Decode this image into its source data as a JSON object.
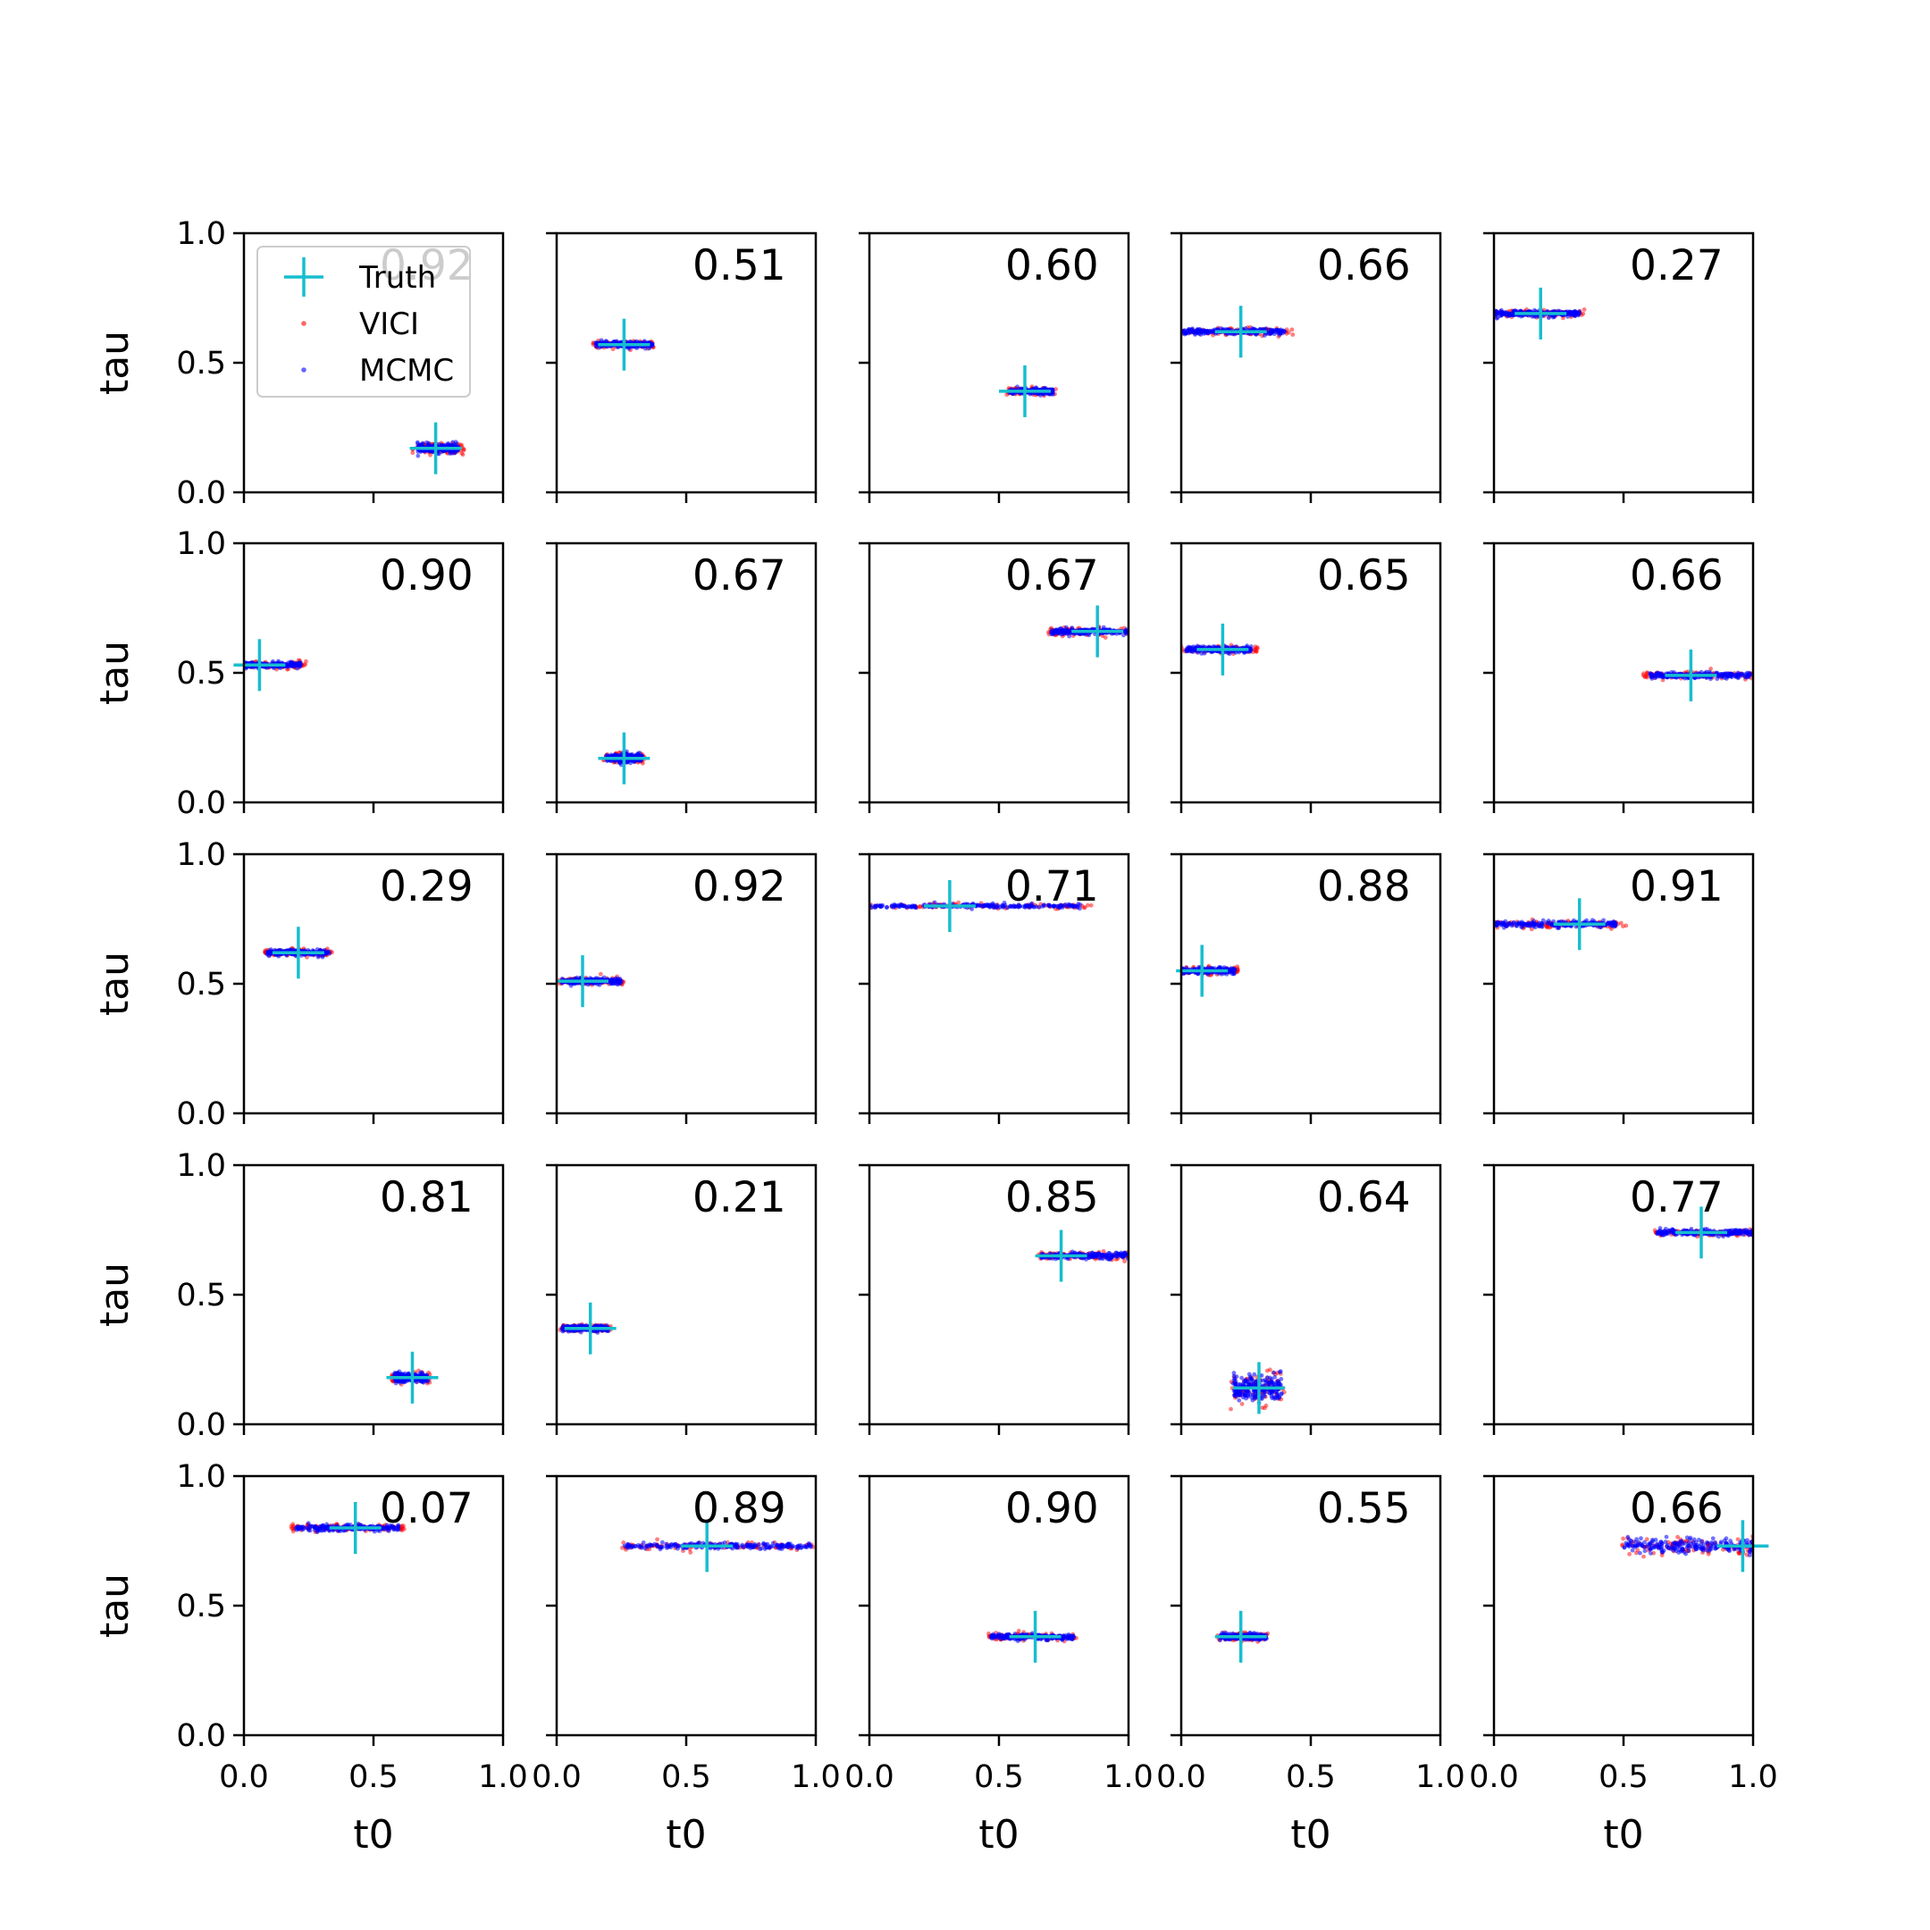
{
  "colors": {
    "truth": "#17becf",
    "vici": "#ff0000",
    "mcmc": "#0000ff",
    "axes": "#000000",
    "background": "#ffffff"
  },
  "legend": {
    "placement": "upper-left of first panel",
    "entries": [
      {
        "label": "Truth",
        "marker": "plus",
        "color": "#17becf"
      },
      {
        "label": "VICI",
        "marker": "dot",
        "color": "#ff0000"
      },
      {
        "label": "MCMC",
        "marker": "dot",
        "color": "#0000ff"
      }
    ]
  },
  "chart_data": {
    "type": "scatter",
    "layout": {
      "rows": 5,
      "cols": 5
    },
    "xlabel": "t0",
    "ylabel": "tau",
    "xlim": [
      0,
      1
    ],
    "ylim": [
      0,
      1
    ],
    "xticks": [
      "0.0",
      "0.5",
      "1.0"
    ],
    "yticks": [
      "0.0",
      "0.5",
      "1.0"
    ],
    "grid": false,
    "panels": [
      {
        "score": "0.92",
        "truth": [
          0.74,
          0.17
        ],
        "t0_range": [
          0.67,
          0.83
        ],
        "tau_spread": 0.012,
        "vici_extra": 0.02
      },
      {
        "score": "0.51",
        "truth": [
          0.26,
          0.57
        ],
        "t0_range": [
          0.15,
          0.37
        ],
        "tau_spread": 0.008,
        "vici_extra": 0.01
      },
      {
        "score": "0.60",
        "truth": [
          0.6,
          0.39
        ],
        "t0_range": [
          0.54,
          0.71
        ],
        "tau_spread": 0.008,
        "vici_extra": 0.01
      },
      {
        "score": "0.66",
        "truth": [
          0.23,
          0.62
        ],
        "t0_range": [
          0.0,
          0.4
        ],
        "tau_spread": 0.008,
        "vici_extra": 0.04
      },
      {
        "score": "0.27",
        "truth": [
          0.18,
          0.69
        ],
        "t0_range": [
          0.0,
          0.33
        ],
        "tau_spread": 0.008,
        "vici_extra": 0.02
      },
      {
        "score": "0.90",
        "truth": [
          0.06,
          0.53
        ],
        "t0_range": [
          0.0,
          0.22
        ],
        "tau_spread": 0.008,
        "vici_extra": 0.02
      },
      {
        "score": "0.67",
        "truth": [
          0.26,
          0.17
        ],
        "t0_range": [
          0.19,
          0.33
        ],
        "tau_spread": 0.012,
        "vici_extra": 0.01
      },
      {
        "score": "0.67",
        "truth": [
          0.88,
          0.66
        ],
        "t0_range": [
          0.7,
          1.0
        ],
        "tau_spread": 0.008,
        "vici_extra": 0.01
      },
      {
        "score": "0.65",
        "truth": [
          0.16,
          0.59
        ],
        "t0_range": [
          0.02,
          0.27
        ],
        "tau_spread": 0.008,
        "vici_extra": 0.03
      },
      {
        "score": "0.66",
        "truth": [
          0.76,
          0.49
        ],
        "t0_range": [
          0.6,
          0.99
        ],
        "tau_spread": 0.008,
        "vici_extra": 0.03
      },
      {
        "score": "0.29",
        "truth": [
          0.21,
          0.62
        ],
        "t0_range": [
          0.09,
          0.33
        ],
        "tau_spread": 0.008,
        "vici_extra": 0.01
      },
      {
        "score": "0.92",
        "truth": [
          0.1,
          0.51
        ],
        "t0_range": [
          0.02,
          0.25
        ],
        "tau_spread": 0.008,
        "vici_extra": 0.01
      },
      {
        "score": "0.71",
        "truth": [
          0.31,
          0.8
        ],
        "t0_range": [
          0.0,
          0.82
        ],
        "tau_spread": 0.006,
        "vici_extra": 0.06
      },
      {
        "score": "0.88",
        "truth": [
          0.08,
          0.55
        ],
        "t0_range": [
          0.0,
          0.21
        ],
        "tau_spread": 0.008,
        "vici_extra": 0.01
      },
      {
        "score": "0.91",
        "truth": [
          0.33,
          0.73
        ],
        "t0_range": [
          0.0,
          0.47
        ],
        "tau_spread": 0.008,
        "vici_extra": 0.04
      },
      {
        "score": "0.81",
        "truth": [
          0.65,
          0.18
        ],
        "t0_range": [
          0.58,
          0.71
        ],
        "tau_spread": 0.012,
        "vici_extra": 0.01
      },
      {
        "score": "0.21",
        "truth": [
          0.13,
          0.37
        ],
        "t0_range": [
          0.02,
          0.2
        ],
        "tau_spread": 0.008,
        "vici_extra": 0.01
      },
      {
        "score": "0.85",
        "truth": [
          0.74,
          0.65
        ],
        "t0_range": [
          0.66,
          1.0
        ],
        "tau_spread": 0.008,
        "vici_extra": 0.01
      },
      {
        "score": "0.64",
        "truth": [
          0.3,
          0.14
        ],
        "t0_range": [
          0.2,
          0.39
        ],
        "tau_spread": 0.035,
        "vici_extra": 0.01
      },
      {
        "score": "0.77",
        "truth": [
          0.8,
          0.74
        ],
        "t0_range": [
          0.63,
          1.0
        ],
        "tau_spread": 0.008,
        "vici_extra": 0.01
      },
      {
        "score": "0.07",
        "truth": [
          0.43,
          0.8
        ],
        "t0_range": [
          0.2,
          0.6
        ],
        "tau_spread": 0.008,
        "vici_extra": 0.02
      },
      {
        "score": "0.89",
        "truth": [
          0.58,
          0.73
        ],
        "t0_range": [
          0.26,
          0.99
        ],
        "tau_spread": 0.008,
        "vici_extra": 0.01
      },
      {
        "score": "0.90",
        "truth": [
          0.64,
          0.38
        ],
        "t0_range": [
          0.47,
          0.79
        ],
        "tau_spread": 0.008,
        "vici_extra": 0.01
      },
      {
        "score": "0.55",
        "truth": [
          0.23,
          0.38
        ],
        "t0_range": [
          0.15,
          0.33
        ],
        "tau_spread": 0.008,
        "vici_extra": 0.01
      },
      {
        "score": "0.66",
        "truth": [
          0.96,
          0.73
        ],
        "t0_range": [
          0.5,
          1.0
        ],
        "tau_spread": 0.018,
        "vici_extra": 0.01
      }
    ]
  }
}
